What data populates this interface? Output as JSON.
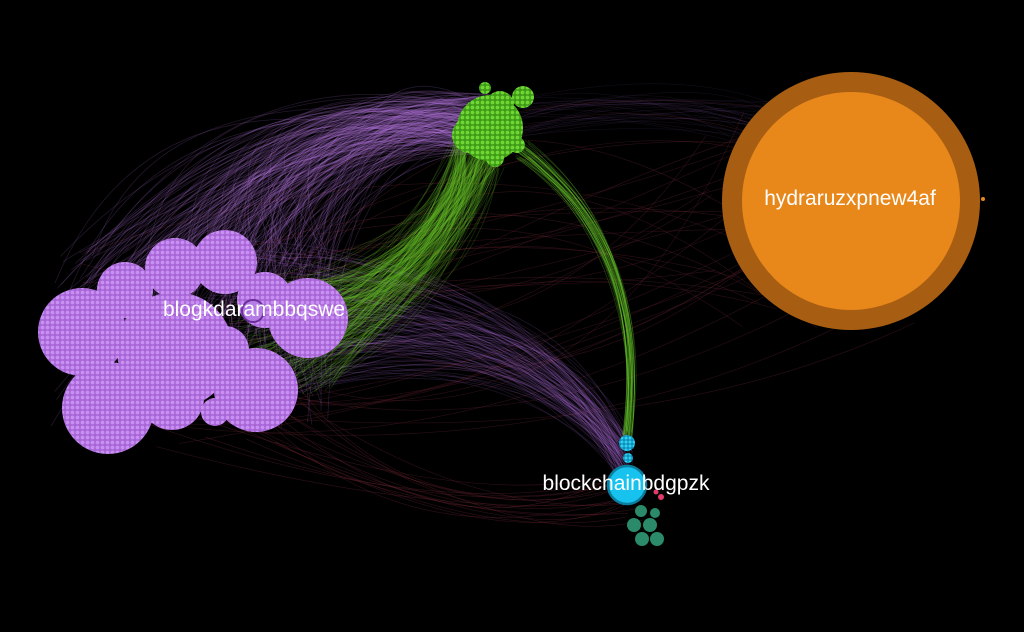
{
  "graph": {
    "background": "#000000",
    "clusters": [
      {
        "id": "blog",
        "label": "blogkdarambbqswe",
        "color": "#b57ce6",
        "icon": "dense-node-cluster"
      },
      {
        "id": "green",
        "label": "",
        "color": "#5ec22a",
        "icon": "dense-node-cluster"
      },
      {
        "id": "hydra",
        "label": "hydraruzxpnew4af",
        "color": "#e8871a",
        "ring_color": "#a85e12",
        "icon": "large-hub-node"
      },
      {
        "id": "blockchain",
        "label": "blockchainbdgpzk",
        "color": "#17c3ee",
        "icon": "hub-node"
      },
      {
        "id": "teal",
        "label": "",
        "color": "#2a8a6a",
        "icon": "small-node-group"
      },
      {
        "id": "pink",
        "label": "",
        "color": "#e23a6a",
        "icon": "small-node-group"
      }
    ],
    "edge_colors": {
      "purple": "#c07ef0",
      "green": "#6ccf2e",
      "faint": "#7a2a3a"
    }
  }
}
